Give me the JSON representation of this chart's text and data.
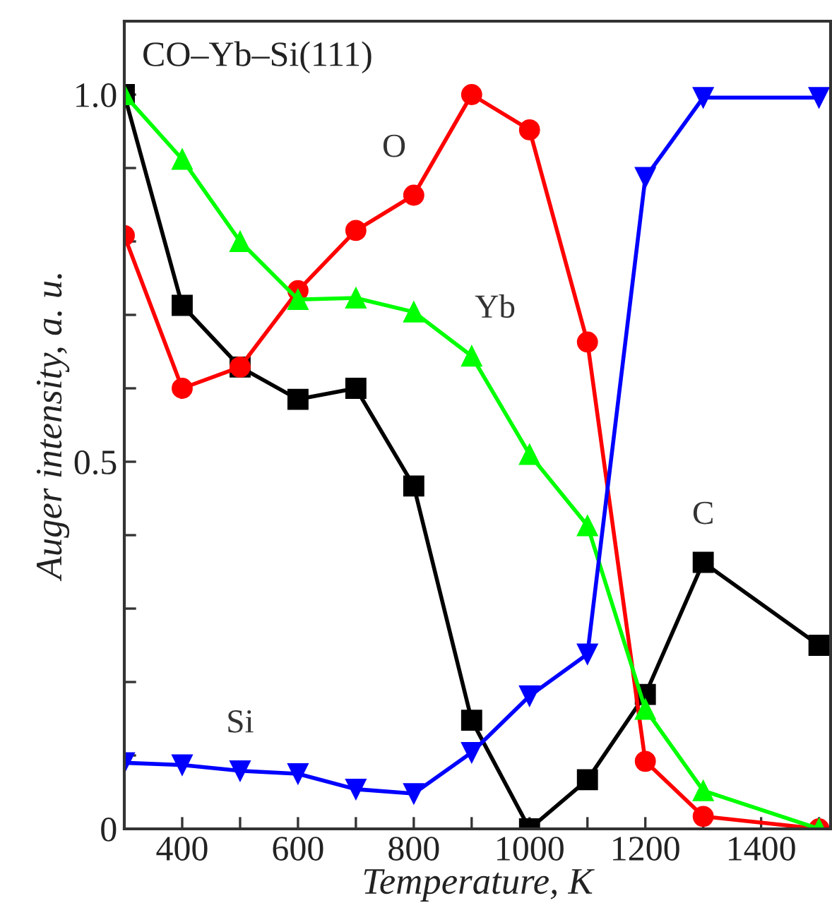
{
  "chart_data": {
    "type": "line",
    "title": "CO–Yb–Si(111)",
    "xlabel": "Temperature, K",
    "ylabel": "Auger intensity, a. u.",
    "x": [
      300,
      400,
      500,
      600,
      700,
      800,
      900,
      1000,
      1100,
      1200,
      1300,
      1500
    ],
    "series": [
      {
        "name": "C",
        "color": "#000000",
        "marker": "square",
        "values": [
          1.0,
          0.713,
          0.629,
          0.585,
          0.6,
          0.467,
          0.148,
          0.0,
          0.067,
          0.183,
          0.363,
          0.25
        ]
      },
      {
        "name": "O",
        "color": "#ff0000",
        "marker": "circle",
        "values": [
          0.808,
          0.6,
          0.629,
          0.733,
          0.815,
          0.863,
          1.0,
          0.952,
          0.663,
          0.092,
          0.017,
          0.0
        ]
      },
      {
        "name": "Yb",
        "color": "#00ff00",
        "marker": "triangle",
        "values": [
          1.0,
          0.912,
          0.8,
          0.721,
          0.723,
          0.704,
          0.644,
          0.51,
          0.413,
          0.163,
          0.052,
          0.0
        ]
      },
      {
        "name": "Si",
        "color": "#0000ff",
        "marker": "triangle_down",
        "values": [
          0.09,
          0.087,
          0.079,
          0.075,
          0.054,
          0.048,
          0.104,
          0.181,
          0.238,
          0.887,
          0.996,
          0.996
        ]
      }
    ],
    "xlim": [
      300,
      1520
    ],
    "xticks": [
      400,
      {
        "value": 500,
        "label": null
      },
      600,
      {
        "value": 700,
        "label": null
      },
      800,
      {
        "value": 900,
        "label": null
      },
      1000,
      {
        "value": 1100,
        "label": null
      },
      1200,
      {
        "value": 1300,
        "label": null
      },
      1400,
      {
        "value": 1500,
        "label": null
      }
    ],
    "ylim": [
      0,
      1.1
    ],
    "yticks": [
      0,
      {
        "value": 0.1,
        "label": null
      },
      {
        "value": 0.2,
        "label": null
      },
      {
        "value": 0.3,
        "label": null
      },
      {
        "value": 0.4,
        "label": null
      },
      {
        "value": 0.5,
        "label": "0.5"
      },
      {
        "value": 0.6,
        "label": null
      },
      {
        "value": 0.7,
        "label": null
      },
      {
        "value": 0.8,
        "label": null
      },
      {
        "value": 0.9,
        "label": null
      },
      {
        "value": 1.0,
        "label": "1.0"
      }
    ],
    "grid": false,
    "legend": false,
    "line_style": "solid"
  }
}
